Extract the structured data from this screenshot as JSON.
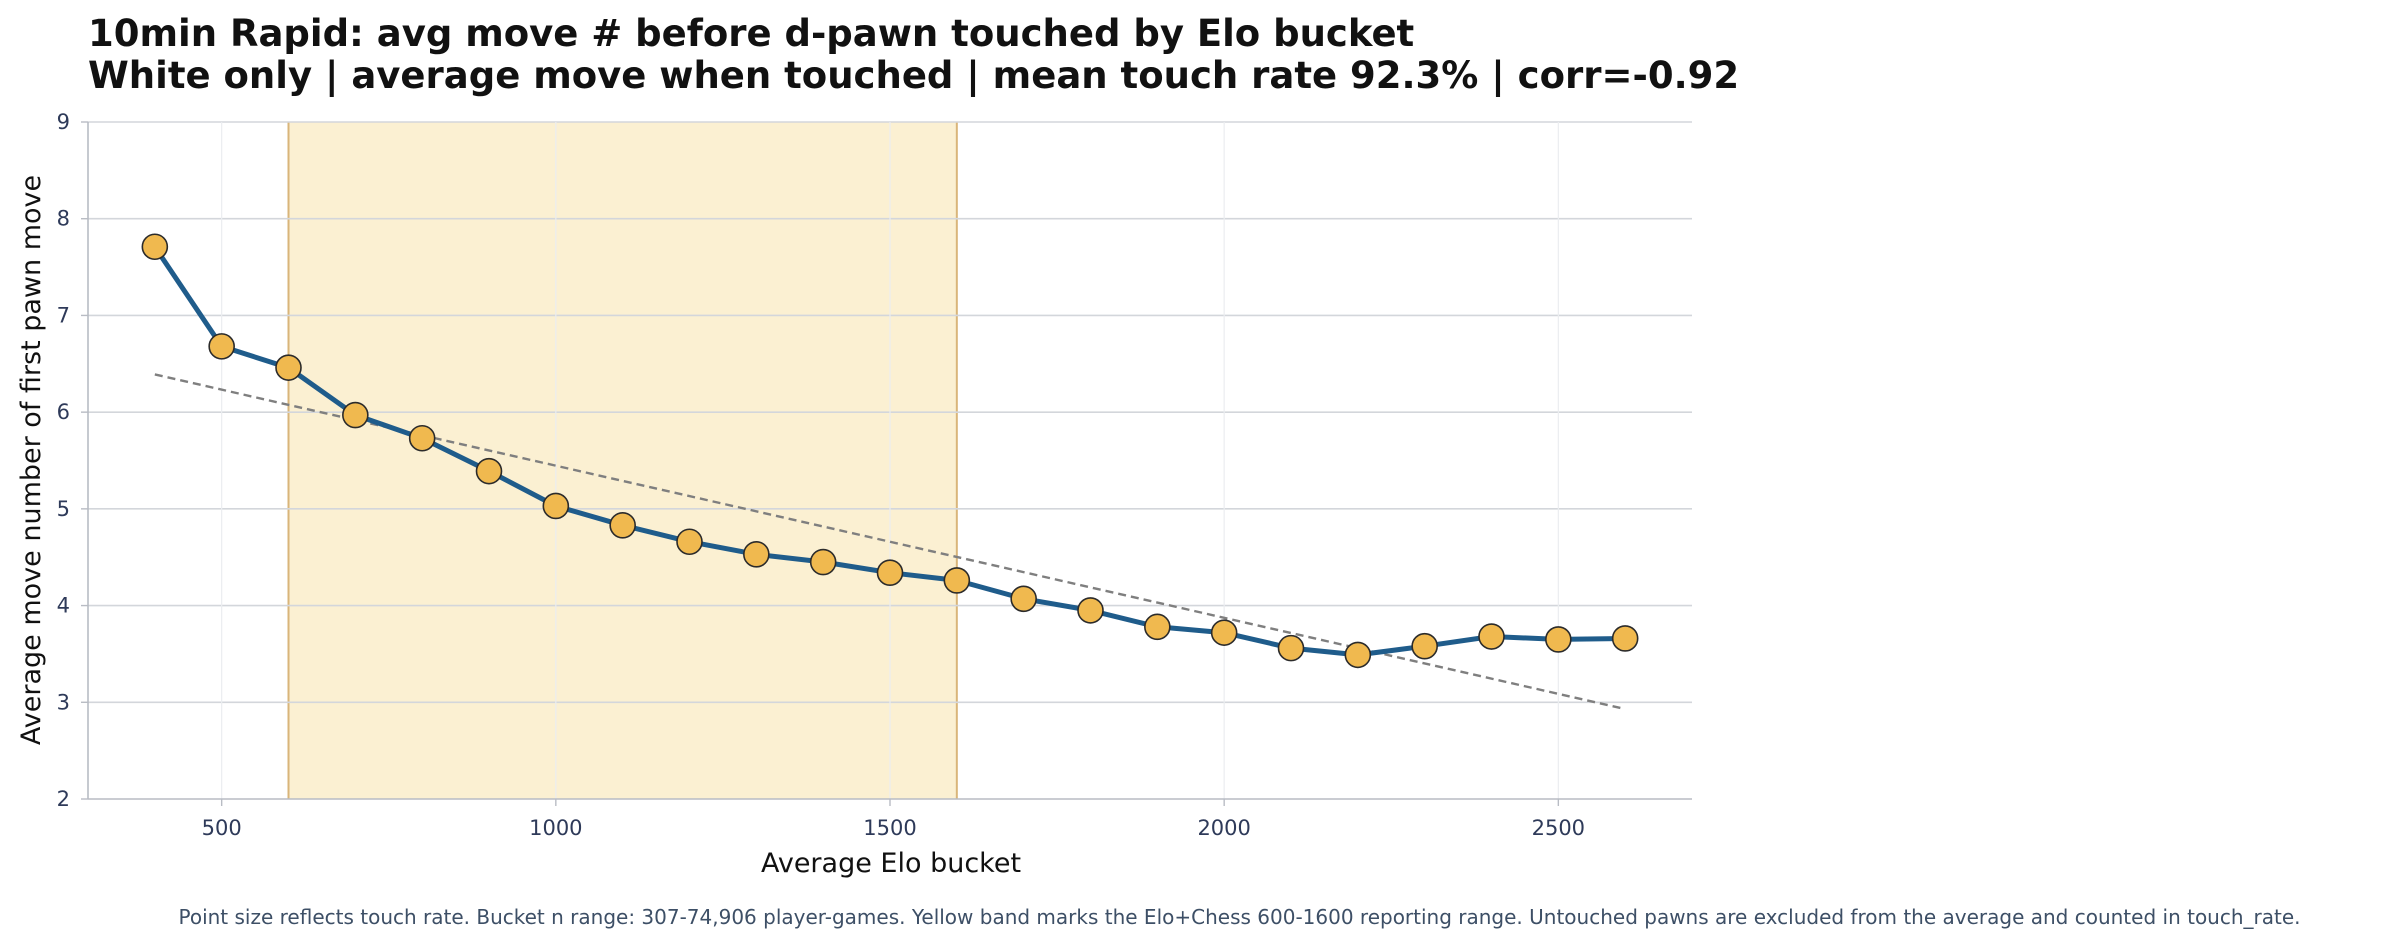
{
  "chart_data": {
    "type": "line",
    "title": "10min Rapid: avg move # before d-pawn touched by Elo bucket",
    "subtitle": "White only | average move when touched | mean touch rate 92.3% | corr=-0.92",
    "xlabel": "Average Elo bucket",
    "ylabel": "Average move number of first pawn move",
    "xlim": [
      300,
      2700
    ],
    "ylim": [
      2,
      9
    ],
    "xticks": [
      500,
      1000,
      1500,
      2000,
      2500
    ],
    "yticks": [
      2,
      3,
      4,
      5,
      6,
      7,
      8,
      9
    ],
    "grid": true,
    "highlight_band": {
      "x_start": 600,
      "x_end": 1600,
      "color": "#fbf0d2",
      "edge_color": "#d9b57a"
    },
    "series": [
      {
        "x": [
          400,
          500,
          600,
          700,
          800,
          900,
          1000,
          1100,
          1200,
          1300,
          1400,
          1500,
          1600,
          1700,
          1800,
          1900,
          2000,
          2100,
          2200,
          2300,
          2400,
          2500,
          2600
        ],
        "y": [
          7.71,
          6.68,
          6.46,
          5.97,
          5.73,
          5.39,
          5.03,
          4.83,
          4.66,
          4.53,
          4.45,
          4.34,
          4.26,
          4.07,
          3.95,
          3.78,
          3.72,
          3.56,
          3.49,
          3.58,
          3.68,
          3.65,
          3.66
        ],
        "line_color": "#1f5c8b",
        "marker_color": "#f0b94f"
      }
    ],
    "trendline": {
      "x": [
        400,
        2600
      ],
      "y": [
        6.39,
        2.93
      ],
      "color": "#7f7f7f",
      "style": "dashed"
    },
    "caption": "Point size reflects touch rate. Bucket n range: 307-74,906 player-games. Yellow band marks the Elo+Chess 600-1600 reporting range. Untouched pawns are excluded from the average and counted in touch_rate."
  }
}
